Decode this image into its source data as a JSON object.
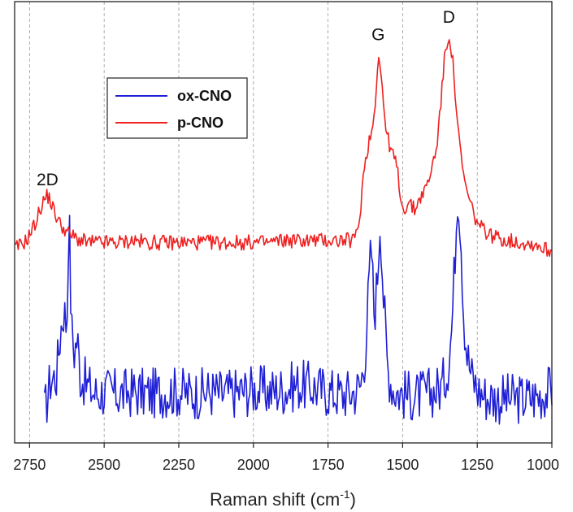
{
  "chart_data": {
    "type": "line",
    "title": "",
    "xlabel": "Raman shift (cm",
    "xlabel_superscript": "-1",
    "xlabel_suffix": ")",
    "ylabel": "",
    "xlim": [
      2800,
      1000
    ],
    "x_reversed": true,
    "y_ticks_shown": false,
    "x_ticks": [
      "2750",
      "2500",
      "2250",
      "2000",
      "1750",
      "1500",
      "1250",
      "1000"
    ],
    "grid": "vertical dashed",
    "legend": {
      "placement": "top-left",
      "entries": [
        "ox-CNO",
        "p-CNO"
      ]
    },
    "annotations": [
      {
        "text": "2D",
        "x": 2690
      },
      {
        "text": "G",
        "x": 1582
      },
      {
        "text": "D",
        "x": 1345
      }
    ],
    "series": [
      {
        "name": "ox-CNO",
        "color": "#1f1fd6",
        "peaks": [
          [
            2640,
            0.48
          ],
          [
            2618,
            0.92
          ],
          [
            2590,
            0.36
          ],
          [
            1605,
            0.75
          ],
          [
            1575,
            0.88
          ],
          [
            1315,
            1.0
          ],
          [
            1340,
            0.2
          ]
        ],
        "x": [
          2700,
          2680,
          2660,
          2645,
          2635,
          2625,
          2618,
          2610,
          2600,
          2590,
          2580,
          2560,
          2530,
          2500,
          2450,
          2400,
          2350,
          2300,
          2250,
          2200,
          2150,
          2100,
          2050,
          2000,
          1950,
          1900,
          1850,
          1800,
          1750,
          1700,
          1660,
          1640,
          1625,
          1612,
          1605,
          1595,
          1585,
          1575,
          1565,
          1550,
          1530,
          1500,
          1450,
          1400,
          1370,
          1350,
          1335,
          1325,
          1315,
          1305,
          1295,
          1285,
          1270,
          1250,
          1220,
          1180,
          1150,
          1100,
          1050,
          1000
        ],
        "y": [
          0.04,
          0.18,
          0.2,
          0.4,
          0.48,
          0.4,
          0.92,
          0.4,
          0.3,
          0.36,
          0.2,
          0.16,
          0.12,
          0.13,
          0.12,
          0.13,
          0.12,
          0.13,
          0.13,
          0.12,
          0.13,
          0.12,
          0.13,
          0.14,
          0.13,
          0.14,
          0.16,
          0.15,
          0.13,
          0.12,
          0.13,
          0.16,
          0.3,
          0.6,
          0.75,
          0.45,
          0.6,
          0.88,
          0.55,
          0.22,
          0.14,
          0.12,
          0.11,
          0.13,
          0.15,
          0.22,
          0.4,
          0.7,
          1.0,
          0.8,
          0.45,
          0.3,
          0.2,
          0.14,
          0.11,
          0.1,
          0.1,
          0.1,
          0.11,
          0.14
        ]
      },
      {
        "name": "p-CNO",
        "color": "#ee2020",
        "peaks": [
          [
            2690,
            0.26
          ],
          [
            1582,
            0.92
          ],
          [
            1345,
            1.0
          ]
        ],
        "x": [
          2800,
          2760,
          2730,
          2710,
          2695,
          2685,
          2670,
          2650,
          2620,
          2580,
          2550,
          2500,
          2450,
          2400,
          2350,
          2300,
          2250,
          2200,
          2150,
          2100,
          2050,
          2000,
          1950,
          1900,
          1850,
          1800,
          1750,
          1700,
          1670,
          1655,
          1645,
          1630,
          1615,
          1600,
          1590,
          1582,
          1575,
          1565,
          1555,
          1540,
          1520,
          1500,
          1480,
          1460,
          1440,
          1420,
          1400,
          1385,
          1370,
          1360,
          1350,
          1345,
          1338,
          1330,
          1320,
          1310,
          1295,
          1280,
          1260,
          1240,
          1200,
          1150,
          1100,
          1050,
          1020,
          1000
        ],
        "y": [
          0.02,
          0.06,
          0.14,
          0.22,
          0.26,
          0.26,
          0.2,
          0.14,
          0.09,
          0.06,
          0.05,
          0.05,
          0.05,
          0.06,
          0.05,
          0.05,
          0.05,
          0.05,
          0.05,
          0.05,
          0.05,
          0.05,
          0.05,
          0.06,
          0.06,
          0.06,
          0.06,
          0.06,
          0.06,
          0.08,
          0.15,
          0.38,
          0.5,
          0.58,
          0.72,
          0.92,
          0.85,
          0.7,
          0.55,
          0.48,
          0.4,
          0.2,
          0.23,
          0.2,
          0.26,
          0.3,
          0.4,
          0.5,
          0.72,
          0.88,
          0.97,
          1.0,
          0.95,
          0.84,
          0.66,
          0.5,
          0.34,
          0.26,
          0.17,
          0.12,
          0.08,
          0.06,
          0.05,
          0.04,
          0.02,
          0.01
        ]
      }
    ]
  }
}
